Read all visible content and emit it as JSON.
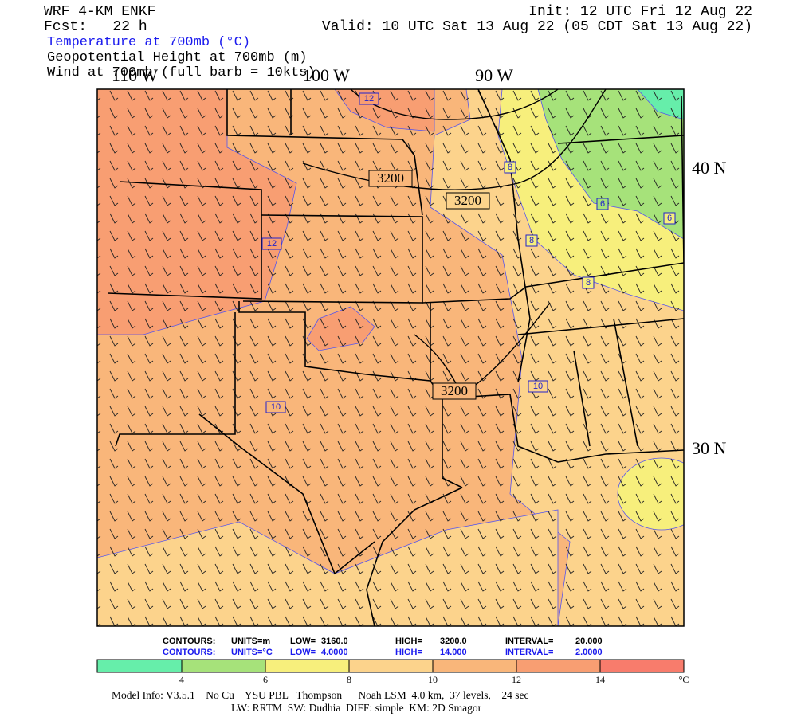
{
  "header": {
    "model": "WRF 4-KM ENKF",
    "forecast": "Fcst:   22 h",
    "init": "Init: 12 UTC Fri 12 Aug 22",
    "valid": "Valid: 10 UTC Sat 13 Aug 22 (05 CDT Sat 13 Aug 22)"
  },
  "fields": [
    "Temperature at 700mb (°C)",
    "Geopotential Height at 700mb (m)",
    "Wind at 700mb (full barb = 10kts)"
  ],
  "map": {
    "longitude_labels": [
      "110 W",
      "100 W",
      "90 W"
    ],
    "latitude_labels": [
      "40 N",
      "30 N"
    ],
    "height_contour_labels": [
      "3200",
      "3200",
      "3200"
    ],
    "temperature_contour_labels": [
      "12",
      "12",
      "10",
      "10",
      "8",
      "8",
      "8",
      "6",
      "6"
    ]
  },
  "contour_info": {
    "height": {
      "label": "CONTOURS:",
      "units": "UNITS=m",
      "low_label": "LOW=",
      "low": "3160.0",
      "high_label": "HIGH=",
      "high": "3200.0",
      "interval_label": "INTERVAL=",
      "interval": "20.000"
    },
    "temperature": {
      "label": "CONTOURS:",
      "units": "UNITS=°C",
      "low_label": "LOW=",
      "low": "4.0000",
      "high_label": "HIGH=",
      "high": "14.000",
      "interval_label": "INTERVAL=",
      "interval": "2.0000"
    }
  },
  "colorbar": {
    "ticks": [
      "4",
      "6",
      "8",
      "10",
      "12",
      "14"
    ],
    "unit": "°C"
  },
  "footer": [
    "Model Info: V3.5.1    No Cu    YSU PBL   Thompson      Noah LSM  4.0 km,  37 levels,    24 sec",
    "LW: RRTM  SW: Dudhia  DIFF: simple  KM: 2D Smagor"
  ]
}
